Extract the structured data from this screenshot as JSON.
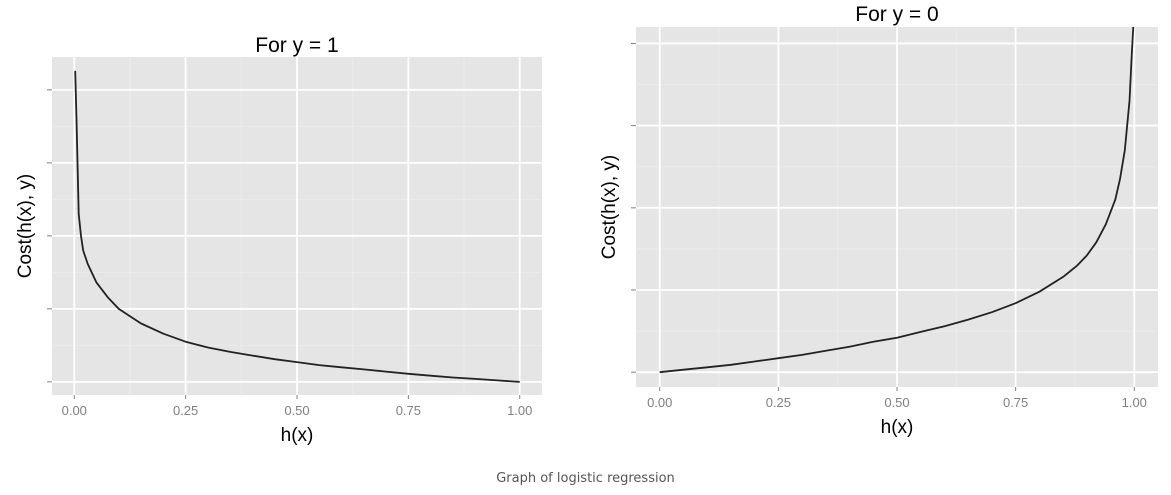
{
  "chart_data": [
    {
      "type": "line",
      "title": "For y = 1",
      "xlabel": "h(x)",
      "ylabel": "Cost(h(x), y)",
      "xlim": [
        -0.05,
        1.05
      ],
      "ylim": [
        -0.18,
        4.45
      ],
      "xticks": [
        "0.00",
        "0.25",
        "0.50",
        "0.75",
        "1.00"
      ],
      "ytick_values": [
        0,
        1,
        2,
        3,
        4
      ],
      "ytick_labels_visible": false,
      "grid": true,
      "series": [
        {
          "color": "#222222",
          "x": [
            0.002,
            0.005,
            0.01,
            0.015,
            0.02,
            0.03,
            0.05,
            0.075,
            0.1,
            0.15,
            0.2,
            0.25,
            0.3,
            0.35,
            0.4,
            0.45,
            0.5,
            0.55,
            0.6,
            0.65,
            0.7,
            0.75,
            0.8,
            0.85,
            0.9,
            0.95,
            1.0
          ],
          "y": [
            4.26,
            3.6,
            2.3,
            2.0,
            1.8,
            1.62,
            1.36,
            1.16,
            1.0,
            0.8,
            0.66,
            0.55,
            0.47,
            0.41,
            0.36,
            0.31,
            0.27,
            0.23,
            0.2,
            0.17,
            0.14,
            0.11,
            0.085,
            0.06,
            0.04,
            0.02,
            0.0
          ]
        }
      ]
    },
    {
      "type": "line",
      "title": "For y = 0",
      "xlabel": "h(x)",
      "ylabel": "Cost(h(x), y)",
      "xlim": [
        -0.05,
        1.05
      ],
      "ylim": [
        -0.18,
        4.2
      ],
      "xticks": [
        "0.00",
        "0.25",
        "0.50",
        "0.75",
        "1.00"
      ],
      "ytick_values": [
        0,
        1,
        2,
        3,
        4
      ],
      "ytick_labels_visible": false,
      "grid": true,
      "series": [
        {
          "color": "#222222",
          "x": [
            0.0,
            0.05,
            0.1,
            0.15,
            0.2,
            0.25,
            0.3,
            0.35,
            0.4,
            0.45,
            0.5,
            0.55,
            0.6,
            0.65,
            0.7,
            0.75,
            0.8,
            0.85,
            0.88,
            0.9,
            0.92,
            0.94,
            0.96,
            0.97,
            0.98,
            0.99,
            0.995,
            0.998
          ],
          "y": [
            0.0,
            0.03,
            0.06,
            0.09,
            0.13,
            0.17,
            0.21,
            0.26,
            0.31,
            0.37,
            0.42,
            0.49,
            0.56,
            0.64,
            0.73,
            0.84,
            0.98,
            1.16,
            1.3,
            1.42,
            1.58,
            1.8,
            2.1,
            2.35,
            2.7,
            3.3,
            3.9,
            4.2
          ]
        }
      ]
    }
  ],
  "caption": "Graph of logistic regression",
  "colors": {
    "panel_background": "#e5e5e5",
    "major_grid": "#ffffff",
    "minor_grid": "#ededed",
    "tick": "#808080",
    "line": "#222222"
  }
}
